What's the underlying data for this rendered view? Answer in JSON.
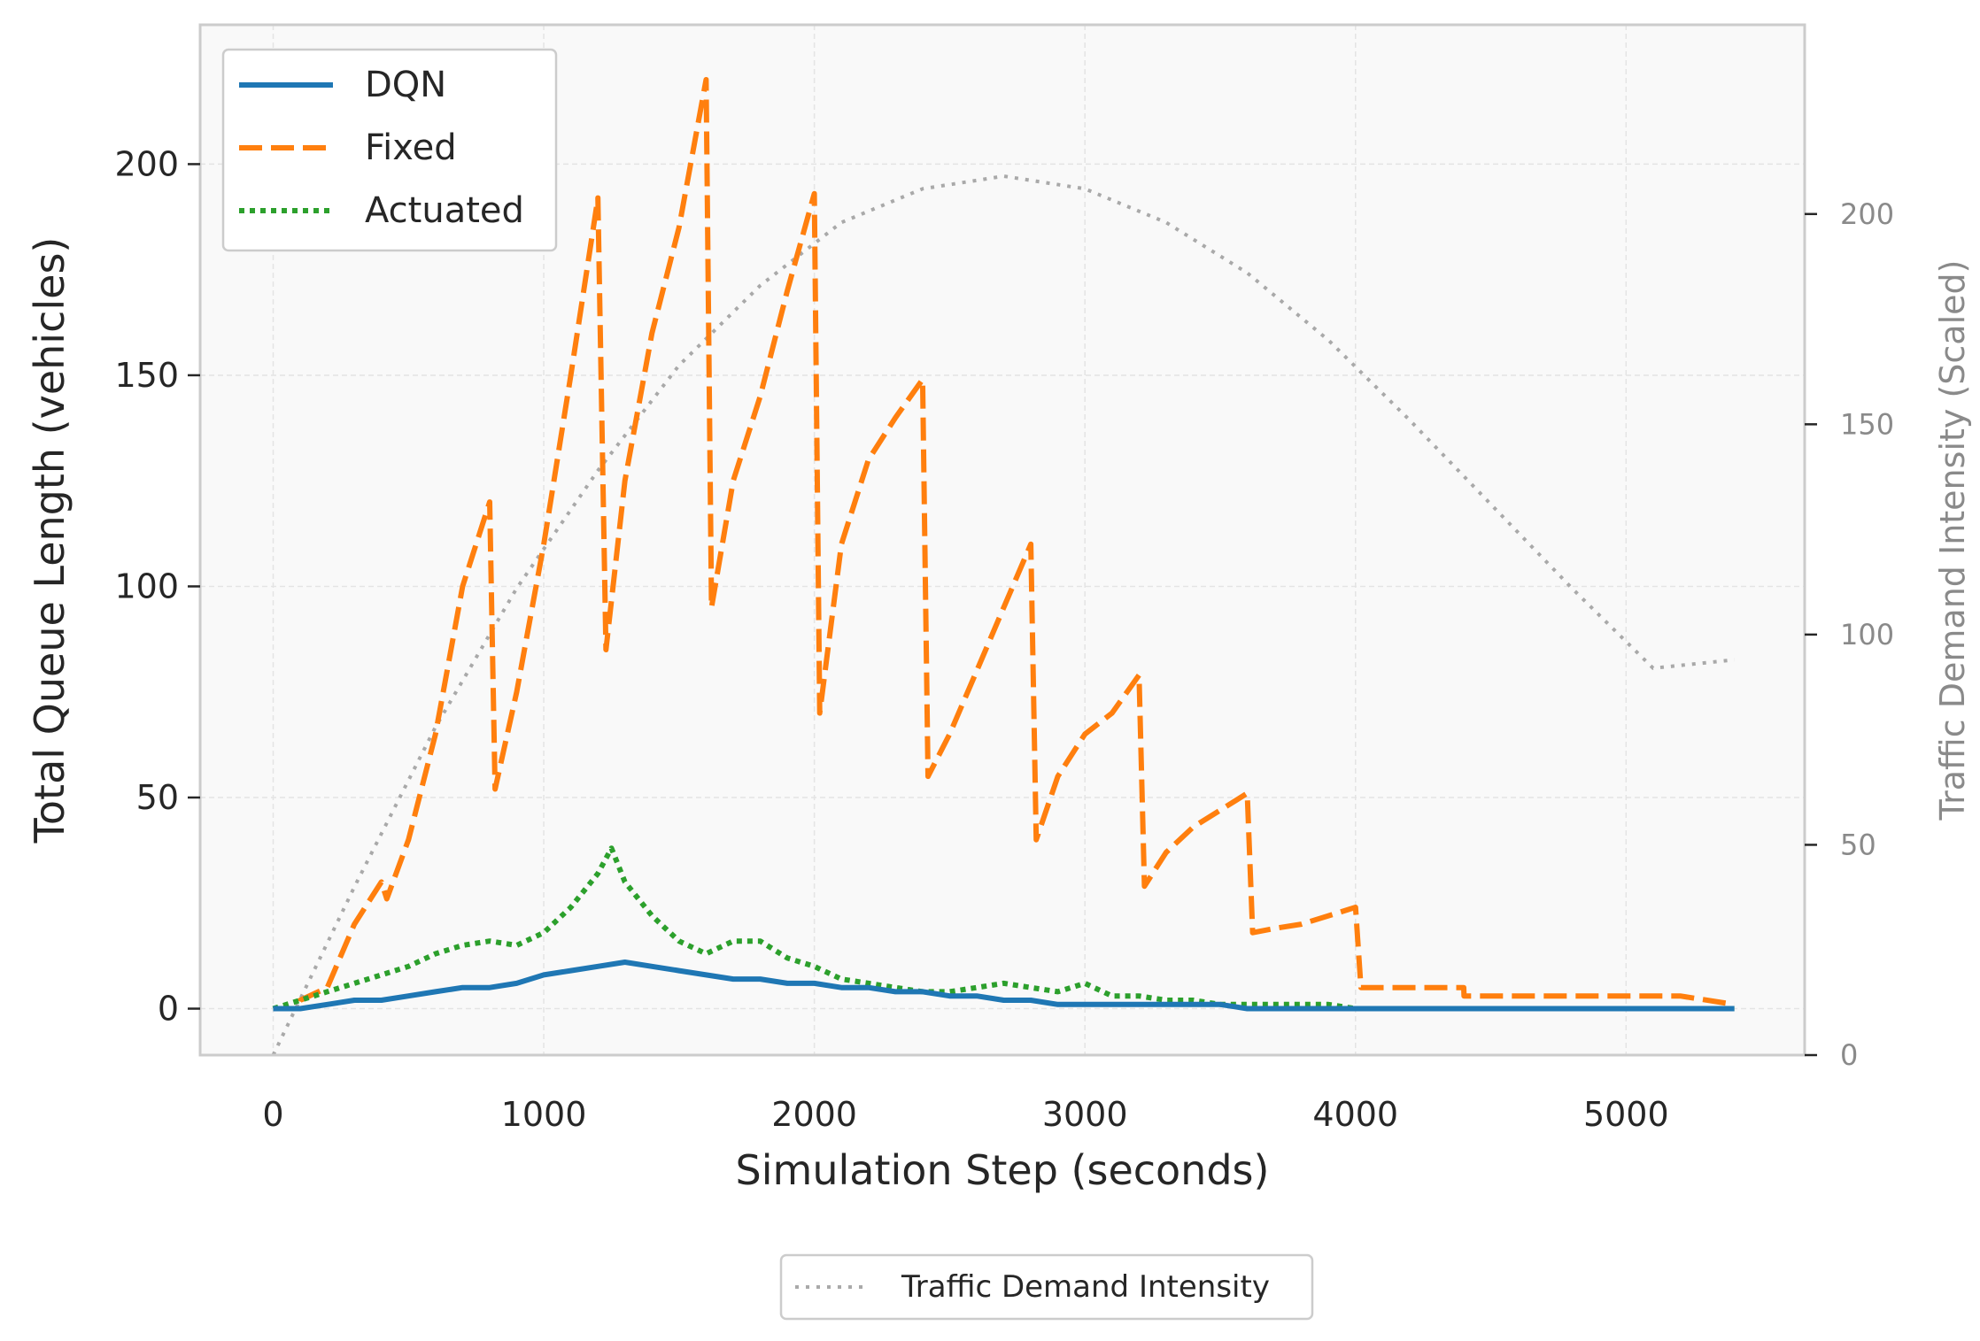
{
  "chart_data": {
    "type": "line",
    "xlabel": "Simulation Step (seconds)",
    "ylabel": "Total Queue Length (vehicles)",
    "y2label": "Traffic Demand Intensity (Scaled)",
    "xlim": [
      -270,
      5660
    ],
    "ylim": [
      -11,
      233
    ],
    "y2lim": [
      0,
      245
    ],
    "xticks": [
      0,
      1000,
      2000,
      3000,
      4000,
      5000
    ],
    "yticks": [
      0,
      50,
      100,
      150,
      200
    ],
    "y2ticks": [
      0,
      50,
      100,
      150,
      200
    ],
    "grid": true,
    "legend_position": "top-left",
    "legend2_position": "bottom-center",
    "colors": {
      "dqn": "#1f77b4",
      "fixed": "#ff7f0e",
      "actuated": "#2ca02c",
      "demand": "#a9a9a9"
    },
    "series": [
      {
        "name": "DQN",
        "key": "dqn",
        "style": "solid",
        "x": [
          0,
          100,
          200,
          300,
          400,
          500,
          600,
          700,
          800,
          900,
          1000,
          1100,
          1200,
          1300,
          1400,
          1500,
          1600,
          1700,
          1800,
          1900,
          2000,
          2100,
          2200,
          2300,
          2400,
          2500,
          2600,
          2700,
          2800,
          2900,
          3000,
          3100,
          3200,
          3300,
          3400,
          3500,
          3600,
          3700,
          3800,
          3900,
          4000,
          4500,
          5000,
          5400
        ],
        "y": [
          0,
          0,
          1,
          2,
          2,
          3,
          4,
          5,
          5,
          6,
          8,
          9,
          10,
          11,
          10,
          9,
          8,
          7,
          7,
          6,
          6,
          5,
          5,
          4,
          4,
          3,
          3,
          2,
          2,
          1,
          1,
          1,
          1,
          1,
          1,
          1,
          0,
          0,
          0,
          0,
          0,
          0,
          0,
          0
        ]
      },
      {
        "name": "Fixed",
        "key": "fixed",
        "style": "dashed",
        "x": [
          0,
          90,
          100,
          200,
          300,
          400,
          420,
          500,
          600,
          700,
          800,
          820,
          900,
          1000,
          1100,
          1200,
          1230,
          1300,
          1400,
          1500,
          1600,
          1620,
          1700,
          1800,
          1900,
          2000,
          2020,
          2100,
          2200,
          2300,
          2400,
          2420,
          2500,
          2600,
          2700,
          2800,
          2820,
          2900,
          3000,
          3100,
          3200,
          3220,
          3300,
          3400,
          3500,
          3600,
          3620,
          3700,
          3800,
          3900,
          4000,
          4020,
          4200,
          4400,
          4401,
          4600,
          4800,
          5000,
          5200,
          5400
        ],
        "y": [
          0,
          0,
          2,
          5,
          20,
          30,
          26,
          40,
          65,
          100,
          120,
          52,
          75,
          110,
          150,
          192,
          85,
          125,
          160,
          185,
          220,
          95,
          125,
          145,
          170,
          193,
          70,
          110,
          130,
          140,
          149,
          55,
          65,
          80,
          95,
          110,
          40,
          55,
          65,
          70,
          79,
          29,
          37,
          43,
          47,
          51,
          18,
          19,
          20,
          22,
          24,
          5,
          5,
          5,
          3,
          3,
          3,
          3,
          3,
          1
        ]
      },
      {
        "name": "Actuated",
        "key": "actuated",
        "style": "dotted",
        "x": [
          0,
          100,
          200,
          300,
          400,
          500,
          600,
          700,
          800,
          900,
          1000,
          1100,
          1200,
          1250,
          1300,
          1400,
          1500,
          1600,
          1700,
          1800,
          1900,
          2000,
          2100,
          2200,
          2300,
          2400,
          2500,
          2600,
          2700,
          2800,
          2900,
          3000,
          3100,
          3200,
          3300,
          3400,
          3500,
          3600,
          3700,
          3800,
          3900,
          4000,
          4500,
          5000,
          5400
        ],
        "y": [
          0,
          2,
          4,
          6,
          8,
          10,
          13,
          15,
          16,
          15,
          18,
          24,
          32,
          38,
          30,
          22,
          16,
          13,
          16,
          16,
          12,
          10,
          7,
          6,
          5,
          4,
          4,
          5,
          6,
          5,
          4,
          6,
          3,
          3,
          2,
          2,
          1,
          1,
          1,
          1,
          1,
          0,
          0,
          0,
          0
        ]
      },
      {
        "name": "Traffic Demand Intensity",
        "key": "demand",
        "style": "dotted",
        "axis": "right",
        "x": [
          0,
          300,
          600,
          900,
          1200,
          1500,
          1800,
          2100,
          2400,
          2700,
          3000,
          3300,
          3600,
          3900,
          4200,
          4500,
          4800,
          5100,
          5400
        ],
        "y": [
          0,
          40,
          78,
          111,
          139,
          164,
          183,
          198,
          206,
          209,
          206,
          198,
          186,
          170,
          151,
          131,
          111,
          92,
          94
        ]
      }
    ]
  }
}
